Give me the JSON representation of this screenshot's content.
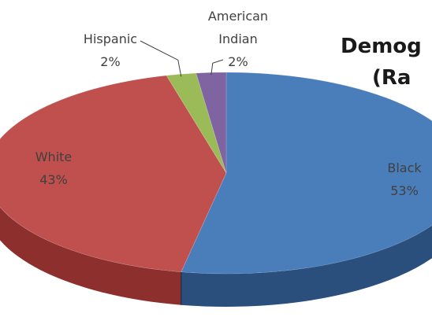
{
  "chart_data": {
    "type": "pie",
    "title_lines": [
      "Demog",
      "(Ra"
    ],
    "slices": [
      {
        "label": "Black",
        "percent": 53,
        "percent_label": "53%",
        "color": "#4a7ebb",
        "side_color": "#2a4f7c"
      },
      {
        "label": "White",
        "percent": 43,
        "percent_label": "43%",
        "color": "#c0504d",
        "side_color": "#8c2f2d"
      },
      {
        "label": "Hispanic",
        "percent": 2,
        "percent_label": "2%",
        "color": "#9bbb59",
        "side_color": "#6f8a3a"
      },
      {
        "label_lines": [
          "American",
          "Indian"
        ],
        "percent": 2,
        "percent_label": "2%",
        "color": "#8064a2",
        "side_color": "#5a4476"
      }
    ]
  }
}
